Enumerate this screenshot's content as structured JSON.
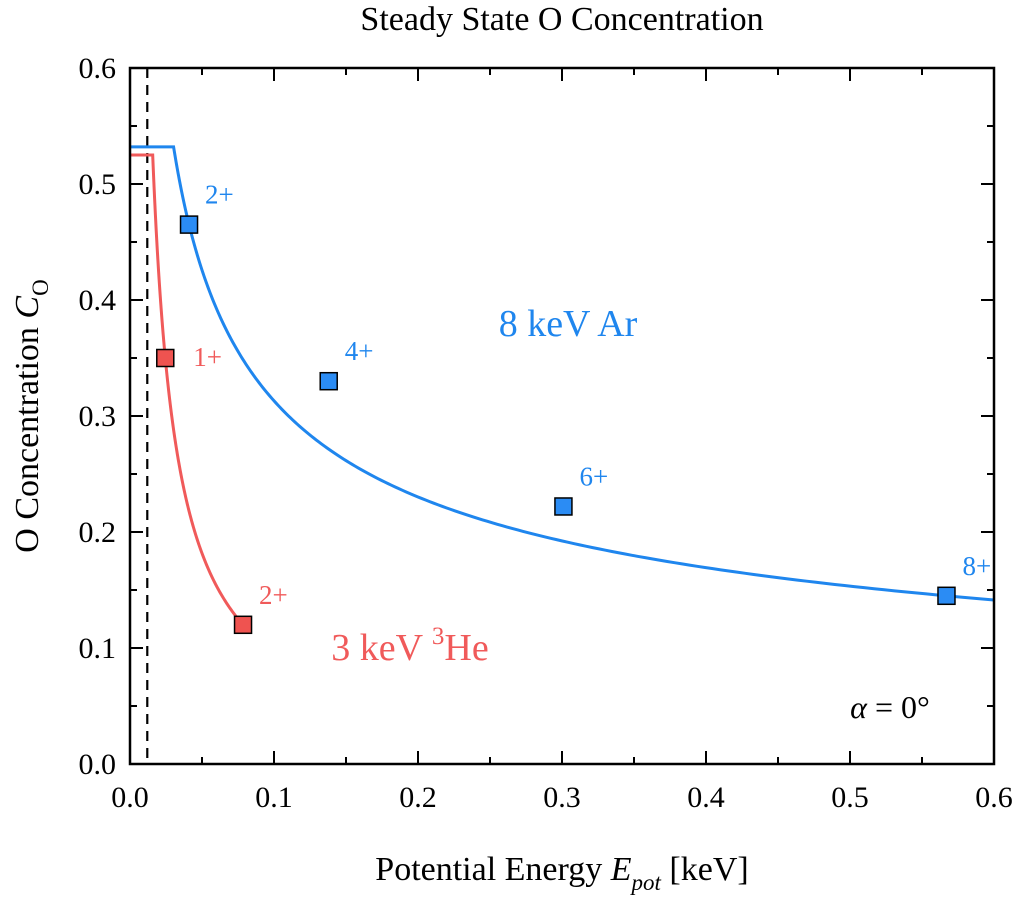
{
  "chart_data": {
    "type": "scatter",
    "title": "Steady State O Concentration",
    "xlabel": {
      "main": "Potential Energy ",
      "symbol": "E",
      "subscript": "pot",
      "unit": " [keV]"
    },
    "ylabel": {
      "main": "O Concentration ",
      "symbol": "C",
      "subscript": "O"
    },
    "xlim": [
      0.0,
      0.6
    ],
    "ylim": [
      0.0,
      0.6
    ],
    "xticks": [
      0.0,
      0.1,
      0.2,
      0.3,
      0.4,
      0.5,
      0.6
    ],
    "yticks": [
      0.0,
      0.1,
      0.2,
      0.3,
      0.4,
      0.5,
      0.6
    ],
    "xtick_labels": [
      "0.0",
      "0.1",
      "0.2",
      "0.3",
      "0.4",
      "0.5",
      "0.6"
    ],
    "ytick_labels": [
      "0.0",
      "0.1",
      "0.2",
      "0.3",
      "0.4",
      "0.5",
      "0.6"
    ],
    "threshold_x": 0.012,
    "series": [
      {
        "label": {
          "main": "8 keV Ar",
          "superscript": "",
          "suffix": ""
        },
        "color": "#1f86ee",
        "marker_color": "#2b8cf4",
        "plateau": 0.532,
        "points": [
          {
            "x": 0.041,
            "y": 0.465,
            "label": "2+"
          },
          {
            "x": 0.138,
            "y": 0.33,
            "label": "4+"
          },
          {
            "x": 0.301,
            "y": 0.222,
            "label": "6+"
          },
          {
            "x": 0.567,
            "y": 0.145,
            "label": "8+"
          }
        ]
      },
      {
        "label": {
          "main": "3 keV ",
          "superscript": "3",
          "suffix": "He"
        },
        "color": "#f05a5a",
        "marker_color": "#ef5350",
        "plateau": 0.525,
        "points": [
          {
            "x": 0.0245,
            "y": 0.35,
            "label": "1+"
          },
          {
            "x": 0.0785,
            "y": 0.12,
            "label": "2+"
          }
        ]
      }
    ],
    "annotation": {
      "symbol": "α",
      "text": " = 0°"
    }
  }
}
